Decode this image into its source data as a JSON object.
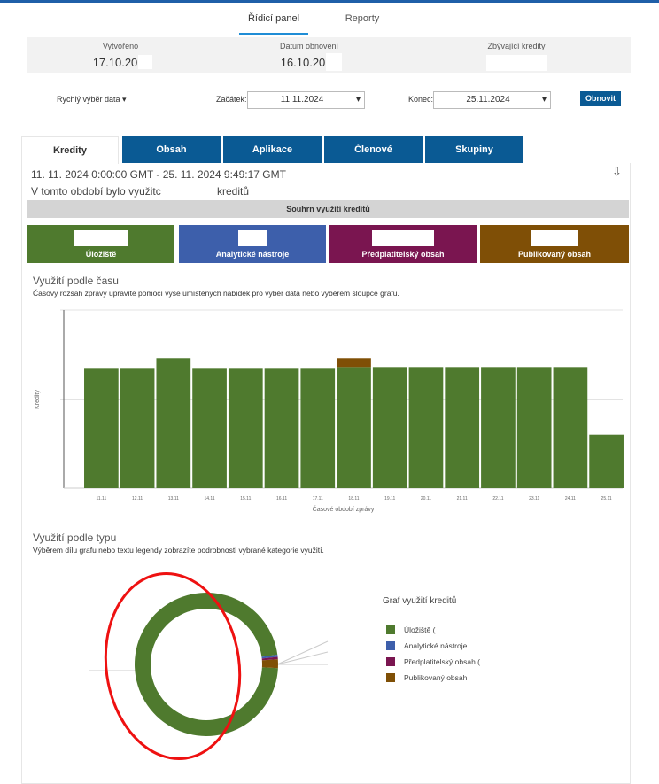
{
  "nav": {
    "tabs": [
      "Řídicí panel",
      "Reporty"
    ]
  },
  "summary": {
    "items": [
      {
        "label": "Vytvořeno",
        "value": "17.10.20"
      },
      {
        "label": "Datum obnovení",
        "value": "16.10.20"
      },
      {
        "label": "Zbývající kredity"
      }
    ]
  },
  "filters": {
    "quick": "Rychlý výběr data",
    "start_label": "Začátek:",
    "start": "11.11.2024",
    "end_label": "Konec:",
    "end": "25.11.2024",
    "button": "Obnovit"
  },
  "tabs": [
    "Kredity",
    "Obsah",
    "Aplikace",
    "Členové",
    "Skupiny"
  ],
  "period": "11. 11. 2024 0:00:00 GMT - 25. 11. 2024 9:49:17 GMT",
  "used_text": [
    "V tomto období bylo využitc",
    "kreditů"
  ],
  "summary_header": "Souhrn využití kreditů",
  "cards": [
    {
      "label": "Úložiště",
      "color": "#4f7a2e"
    },
    {
      "label": "Analytické nástroje",
      "color": "#3d5fab"
    },
    {
      "label": "Předplatitelský obsah",
      "color": "#7a1550"
    },
    {
      "label": "Publikovaný obsah",
      "color": "#7f4f06"
    }
  ],
  "time_chart": {
    "type": "bar",
    "title": "Využití podle času",
    "subtitle": "Časový rozsah zprávy upravíte pomocí výše umístěných nabídek pro výběr data nebo výběrem sloupce grafu.",
    "ylabel": "Kredity",
    "xlabel": "Časové období zprávy",
    "categories": [
      "11.11",
      "12.11",
      "13.11",
      "14.11",
      "15.11",
      "16.11",
      "17.11",
      "18.11",
      "19.11",
      "20.11",
      "21.11",
      "22.11",
      "23.11",
      "24.11",
      "25.11"
    ],
    "series": [
      {
        "color": "#4f7a2e",
        "values": [
          1.35,
          1.35,
          1.46,
          1.35,
          1.35,
          1.35,
          1.35,
          1.36,
          1.36,
          1.36,
          1.36,
          1.36,
          1.36,
          1.36,
          0.6
        ]
      },
      {
        "color": "#7f4f06",
        "values": [
          0,
          0,
          0,
          0,
          0,
          0,
          0,
          0.1,
          0,
          0,
          0,
          0,
          0,
          0,
          0
        ]
      }
    ],
    "ylim": [
      0,
      2
    ],
    "grid_values": [
      1,
      2
    ]
  },
  "type_chart": {
    "type": "donut",
    "title": "Využití podle typu",
    "subtitle": "Výběrem dílu grafu nebo textu legendy zobrazíte podrobnosti vybrané kategorie využití.",
    "legend_title": "Graf využití kreditů",
    "categories": [
      "Úložiště (",
      "Analytické nástroje",
      "Předplatitelský obsah (",
      "Publikovaný obsah"
    ],
    "values": [
      97,
      0.5,
      0.5,
      2
    ],
    "colors": [
      "#4f7a2e",
      "#3d5fab",
      "#7a1550",
      "#7f4f06"
    ]
  }
}
